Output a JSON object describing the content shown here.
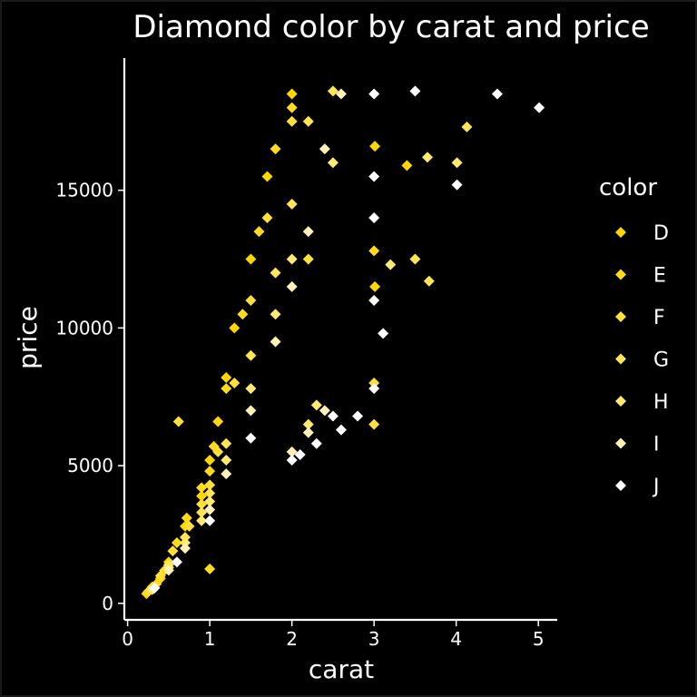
{
  "chart_data": {
    "type": "scatter",
    "title": "Diamond color by carat and price",
    "xlabel": "carat",
    "ylabel": "price",
    "xlim": [
      -0.04,
      5.23
    ],
    "ylim": [
      -600,
      19800
    ],
    "x_ticks": [
      0,
      1,
      2,
      3,
      4,
      5
    ],
    "y_ticks": [
      0,
      5000,
      10000,
      15000
    ],
    "legend": {
      "title": "color",
      "position": "right"
    },
    "series": [
      {
        "name": "D",
        "color": "#FFD700",
        "points": [
          [
            0.23,
            350
          ],
          [
            0.3,
            600
          ],
          [
            0.4,
            900
          ],
          [
            0.5,
            1500
          ],
          [
            0.7,
            2800
          ],
          [
            0.9,
            3900
          ],
          [
            1.0,
            5200
          ],
          [
            1.1,
            6600
          ],
          [
            1.2,
            8200
          ],
          [
            1.3,
            10000
          ],
          [
            1.5,
            12500
          ],
          [
            1.7,
            15500
          ],
          [
            2.0,
            18500
          ],
          [
            3.01,
            16600
          ],
          [
            3.01,
            11500
          ],
          [
            3.4,
            15900
          ]
        ]
      },
      {
        "name": "E",
        "color": "#FFDB1C",
        "points": [
          [
            0.25,
            420
          ],
          [
            0.35,
            700
          ],
          [
            0.45,
            1200
          ],
          [
            0.6,
            2200
          ],
          [
            0.72,
            3100
          ],
          [
            0.9,
            4200
          ],
          [
            1.0,
            4800
          ],
          [
            1.0,
            1250
          ],
          [
            1.05,
            5700
          ],
          [
            1.2,
            7800
          ],
          [
            1.4,
            10500
          ],
          [
            1.6,
            13500
          ],
          [
            1.8,
            16500
          ],
          [
            2.0,
            18000
          ],
          [
            3.0,
            12800
          ]
        ]
      },
      {
        "name": "F",
        "color": "#FFE037",
        "points": [
          [
            0.26,
            450
          ],
          [
            0.4,
            1000
          ],
          [
            0.55,
            1900
          ],
          [
            0.62,
            6600
          ],
          [
            0.75,
            2800
          ],
          [
            0.9,
            3600
          ],
          [
            1.0,
            4300
          ],
          [
            1.1,
            5500
          ],
          [
            1.3,
            8000
          ],
          [
            1.5,
            11000
          ],
          [
            1.7,
            14000
          ],
          [
            2.0,
            17500
          ],
          [
            2.2,
            12500
          ],
          [
            3.0,
            8000
          ],
          [
            3.0,
            6500
          ]
        ]
      },
      {
        "name": "G",
        "color": "#FFE453",
        "points": [
          [
            0.3,
            500
          ],
          [
            0.5,
            1400
          ],
          [
            0.7,
            2400
          ],
          [
            0.9,
            3300
          ],
          [
            1.0,
            4000
          ],
          [
            1.2,
            5800
          ],
          [
            1.5,
            9000
          ],
          [
            1.8,
            12000
          ],
          [
            2.0,
            14500
          ],
          [
            2.2,
            17500
          ],
          [
            2.5,
            18600
          ],
          [
            4.13,
            17300
          ],
          [
            3.5,
            12500
          ],
          [
            3.67,
            11700
          ]
        ]
      },
      {
        "name": "H",
        "color": "#FFE96F",
        "points": [
          [
            0.3,
            520
          ],
          [
            0.5,
            1300
          ],
          [
            0.7,
            2200
          ],
          [
            0.9,
            3000
          ],
          [
            1.0,
            3700
          ],
          [
            1.2,
            5200
          ],
          [
            1.5,
            7800
          ],
          [
            1.8,
            10500
          ],
          [
            2.0,
            12500
          ],
          [
            2.2,
            6500
          ],
          [
            2.3,
            7200
          ],
          [
            2.5,
            16000
          ],
          [
            4.01,
            16000
          ],
          [
            3.65,
            16200
          ],
          [
            3.2,
            12300
          ]
        ]
      },
      {
        "name": "I",
        "color": "#FFF1B5",
        "points": [
          [
            0.32,
            540
          ],
          [
            0.5,
            1200
          ],
          [
            0.7,
            2000
          ],
          [
            1.0,
            3400
          ],
          [
            1.2,
            4700
          ],
          [
            1.5,
            7000
          ],
          [
            1.8,
            9500
          ],
          [
            2.0,
            11500
          ],
          [
            2.2,
            13500
          ],
          [
            2.4,
            16500
          ],
          [
            2.0,
            5500
          ],
          [
            2.2,
            6200
          ],
          [
            2.4,
            7000
          ],
          [
            2.6,
            18500
          ]
        ]
      },
      {
        "name": "J",
        "color": "#FFFFFF",
        "points": [
          [
            0.33,
            560
          ],
          [
            0.6,
            1500
          ],
          [
            1.0,
            3000
          ],
          [
            1.5,
            6000
          ],
          [
            2.0,
            5200
          ],
          [
            2.1,
            5400
          ],
          [
            2.3,
            5800
          ],
          [
            2.5,
            6800
          ],
          [
            3.0,
            18500
          ],
          [
            3.0,
            15500
          ],
          [
            3.0,
            14000
          ],
          [
            3.0,
            11000
          ],
          [
            3.11,
            9800
          ],
          [
            3.5,
            18600
          ],
          [
            4.01,
            15200
          ],
          [
            4.5,
            18500
          ],
          [
            5.01,
            18000
          ],
          [
            2.6,
            6300
          ],
          [
            2.8,
            6800
          ],
          [
            3.0,
            7800
          ]
        ]
      }
    ]
  }
}
